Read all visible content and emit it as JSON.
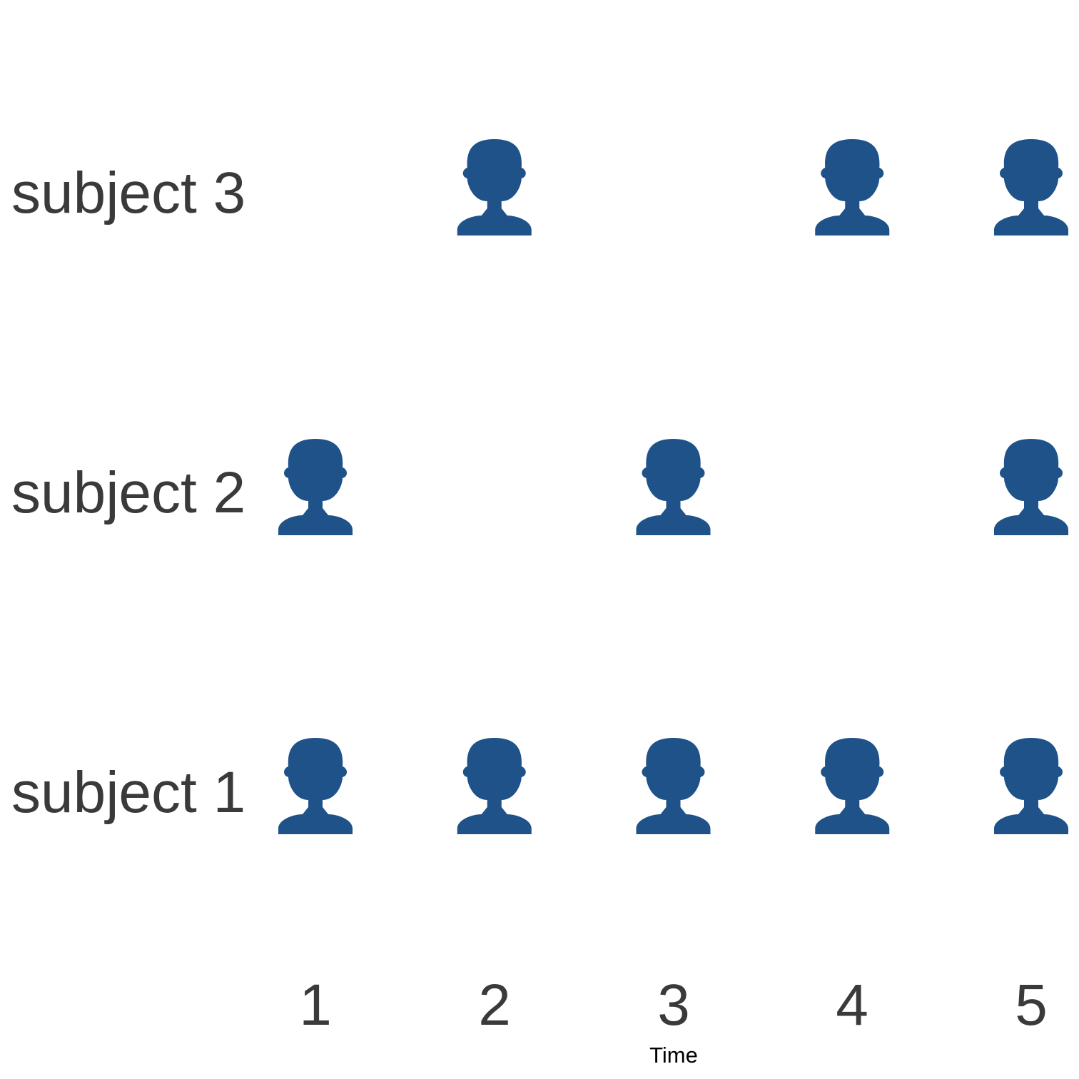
{
  "chart_data": {
    "type": "scatter",
    "marker_icon": "user-icon",
    "marker_color": "#1f5289",
    "text_color": "#3a3a3a",
    "categories": [
      "subject 1",
      "subject 2",
      "subject 3"
    ],
    "x_ticks": [
      "1",
      "2",
      "3",
      "4",
      "5"
    ],
    "xlabel": "Time",
    "ylabel": "",
    "xlim": [
      1,
      5
    ],
    "grid": false,
    "series": [
      {
        "subject": "subject 1",
        "x": [
          1,
          2,
          3,
          4,
          5
        ]
      },
      {
        "subject": "subject 2",
        "x": [
          1,
          3,
          5
        ]
      },
      {
        "subject": "subject 3",
        "x": [
          2,
          4,
          5
        ]
      }
    ]
  }
}
